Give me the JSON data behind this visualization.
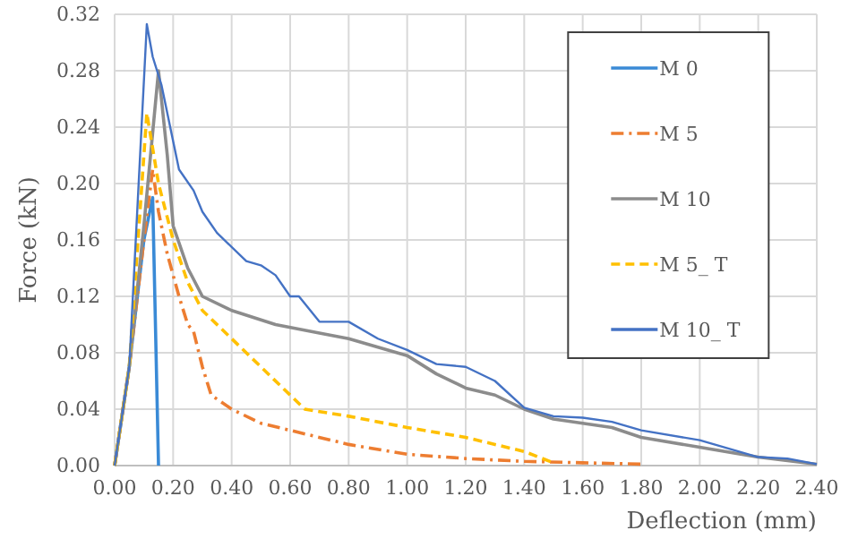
{
  "chart_data": {
    "type": "line",
    "xlabel": "Deflection (mm)",
    "ylabel": "Force (kN)",
    "xlim": [
      0,
      2.4
    ],
    "ylim": [
      0,
      0.32
    ],
    "xticks": [
      {
        "value": 0,
        "label": "0.00"
      },
      {
        "value": 0.2,
        "label": "0.20"
      },
      {
        "value": 0.4,
        "label": "0.40"
      },
      {
        "value": 0.6,
        "label": "0.60"
      },
      {
        "value": 0.8,
        "label": "0.80"
      },
      {
        "value": 1,
        "label": "1.00"
      },
      {
        "value": 1.2,
        "label": "1.20"
      },
      {
        "value": 1.4,
        "label": "1.40"
      },
      {
        "value": 1.6,
        "label": "1.60"
      },
      {
        "value": 1.8,
        "label": "1.80"
      },
      {
        "value": 2,
        "label": "2.00"
      },
      {
        "value": 2.2,
        "label": "2.20"
      },
      {
        "value": 2.4,
        "label": "2.40"
      }
    ],
    "yticks": [
      {
        "value": 0,
        "label": "0.00"
      },
      {
        "value": 0.04,
        "label": "0.04"
      },
      {
        "value": 0.08,
        "label": "0.08"
      },
      {
        "value": 0.12,
        "label": "0.12"
      },
      {
        "value": 0.16,
        "label": "0.16"
      },
      {
        "value": 0.2,
        "label": "0.20"
      },
      {
        "value": 0.24,
        "label": "0.24"
      },
      {
        "value": 0.28,
        "label": "0.28"
      },
      {
        "value": 0.32,
        "label": "0.32"
      }
    ],
    "grid": true,
    "legend": "top right",
    "series": [
      {
        "name": "M 0",
        "color": "#3a8ad6",
        "line_style": "solid",
        "x": [
          0,
          0.05,
          0.1,
          0.13,
          0.15
        ],
        "values": [
          0,
          0.07,
          0.16,
          0.19,
          0
        ]
      },
      {
        "name": "M 5",
        "color": "#ed7d31",
        "line_style": "dashdot",
        "x": [
          0,
          0.05,
          0.1,
          0.13,
          0.15,
          0.18,
          0.22,
          0.25,
          0.27,
          0.3,
          0.33,
          0.4,
          0.5,
          0.6,
          0.8,
          1,
          1.2,
          1.4,
          1.6,
          1.8
        ],
        "values": [
          0,
          0.07,
          0.16,
          0.21,
          0.18,
          0.15,
          0.12,
          0.1,
          0.095,
          0.07,
          0.05,
          0.04,
          0.03,
          0.025,
          0.015,
          0.008,
          0.005,
          0.003,
          0.002,
          0.001
        ]
      },
      {
        "name": "M 10",
        "color": "#8c8c8c",
        "line_style": "solid",
        "x": [
          0,
          0.05,
          0.1,
          0.15,
          0.18,
          0.2,
          0.25,
          0.3,
          0.4,
          0.55,
          0.7,
          0.8,
          1,
          1.1,
          1.2,
          1.3,
          1.4,
          1.5,
          1.6,
          1.7,
          1.8,
          2,
          2.2,
          2.4
        ],
        "values": [
          0,
          0.07,
          0.17,
          0.28,
          0.22,
          0.17,
          0.14,
          0.12,
          0.11,
          0.1,
          0.094,
          0.09,
          0.078,
          0.065,
          0.055,
          0.05,
          0.04,
          0.033,
          0.03,
          0.027,
          0.02,
          0.013,
          0.006,
          0.001
        ]
      },
      {
        "name": "M 5_ T",
        "color": "#ffc000",
        "line_style": "dashed",
        "x": [
          0,
          0.05,
          0.11,
          0.15,
          0.2,
          0.25,
          0.3,
          0.4,
          0.5,
          0.6,
          0.65,
          0.8,
          1,
          1.2,
          1.4,
          1.5
        ],
        "values": [
          0,
          0.07,
          0.25,
          0.2,
          0.16,
          0.13,
          0.11,
          0.09,
          0.07,
          0.05,
          0.04,
          0.035,
          0.027,
          0.02,
          0.01,
          0.002
        ]
      },
      {
        "name": "M 10_ T",
        "color": "#4472c4",
        "line_style": "solid",
        "x": [
          0,
          0.05,
          0.11,
          0.13,
          0.16,
          0.2,
          0.22,
          0.27,
          0.3,
          0.35,
          0.45,
          0.5,
          0.55,
          0.6,
          0.63,
          0.7,
          0.8,
          0.9,
          1,
          1.1,
          1.2,
          1.3,
          1.4,
          1.5,
          1.6,
          1.7,
          1.8,
          2,
          2.2,
          2.3,
          2.4
        ],
        "values": [
          0,
          0.07,
          0.313,
          0.29,
          0.27,
          0.23,
          0.21,
          0.195,
          0.18,
          0.165,
          0.145,
          0.142,
          0.135,
          0.12,
          0.12,
          0.102,
          0.102,
          0.09,
          0.082,
          0.072,
          0.07,
          0.06,
          0.041,
          0.035,
          0.034,
          0.031,
          0.025,
          0.018,
          0.006,
          0.005,
          0.001
        ]
      }
    ]
  }
}
